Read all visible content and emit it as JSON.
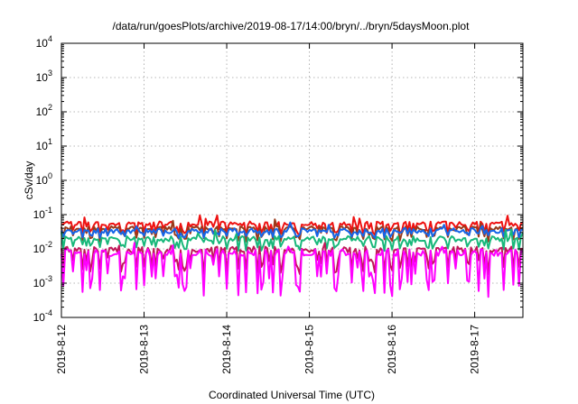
{
  "chart_data": {
    "type": "line",
    "title": "/data/run/goesPlots/archive/2019-08-17/14:00/bryn/../bryn/5daysMoon.plot",
    "xlabel": "Coordinated Universal Time (UTC)",
    "ylabel": "cSv/day",
    "yscale": "log",
    "ylim": [
      0.0001,
      10000
    ],
    "y_ticks": [
      {
        "value": 0.0001,
        "base": "10",
        "exp": "-4"
      },
      {
        "value": 0.001,
        "base": "10",
        "exp": "-3"
      },
      {
        "value": 0.01,
        "base": "10",
        "exp": "-2"
      },
      {
        "value": 0.1,
        "base": "10",
        "exp": "-1"
      },
      {
        "value": 1,
        "base": "10",
        "exp": "0"
      },
      {
        "value": 10,
        "base": "10",
        "exp": "1"
      },
      {
        "value": 100,
        "base": "10",
        "exp": "2"
      },
      {
        "value": 1000,
        "base": "10",
        "exp": "3"
      },
      {
        "value": 10000,
        "base": "10",
        "exp": "4"
      }
    ],
    "xlim": [
      "2019-08-12T00:00",
      "2019-08-17T14:00"
    ],
    "x_ticks": [
      {
        "date": "2019-08-12T00:00",
        "label": "2019-8-12"
      },
      {
        "date": "2019-08-13T00:00",
        "label": "2019-8-13"
      },
      {
        "date": "2019-08-14T00:00",
        "label": "2019-8-14"
      },
      {
        "date": "2019-08-15T00:00",
        "label": "2019-8-15"
      },
      {
        "date": "2019-08-16T00:00",
        "label": "2019-8-16"
      },
      {
        "date": "2019-08-17T00:00",
        "label": "2019-8-17"
      }
    ],
    "grid": true,
    "series": [
      {
        "color": "#ee1111",
        "base": 0.055,
        "mod_depth": 0.25,
        "noise": 0.12,
        "dip_floor": 0.85
      },
      {
        "color": "#9a3a1a",
        "base": 0.04,
        "mod_depth": 0.3,
        "noise": 0.12,
        "dip_floor": 0.8
      },
      {
        "color": "#1565e8",
        "base": 0.034,
        "mod_depth": 0.3,
        "noise": 0.15,
        "dip_floor": 0.35
      },
      {
        "color": "#18b87a",
        "base": 0.02,
        "mod_depth": 0.4,
        "noise": 0.15,
        "dip_floor": 0.55
      },
      {
        "color": "#c01858",
        "base": 0.0095,
        "mod_depth": 0.6,
        "noise": 0.18,
        "dip_floor": 0.75
      },
      {
        "color": "#ff00ff",
        "base": 0.0078,
        "mod_depth": 0.9,
        "noise": 0.2,
        "dip_floor": 0.95
      }
    ]
  }
}
